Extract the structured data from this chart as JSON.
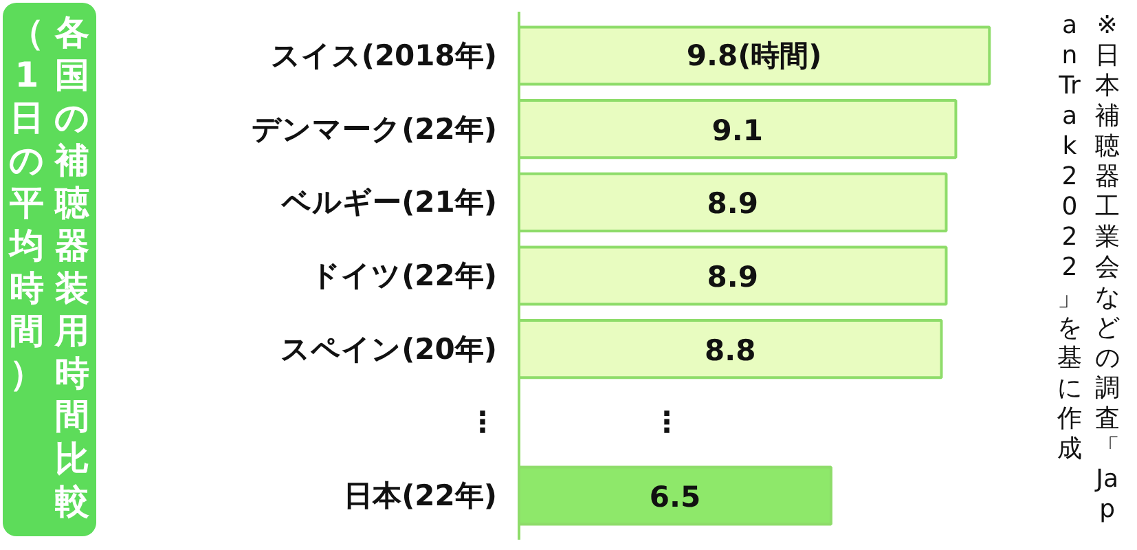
{
  "chart_data": {
    "type": "bar",
    "orientation": "horizontal",
    "title": "各国の補聴器装用時間比較（1日の平均時間）",
    "annotations": [
      "※日本補聴器工業会などの調査「Japan Trak 2022」を基に作成"
    ],
    "categories": [
      "スイス(2018年)",
      "デンマーク(22年)",
      "ベルギー(21年)",
      "ドイツ(22年)",
      "スペイン(20年)",
      "⋮",
      "日本(22年)"
    ],
    "values": [
      9.8,
      9.1,
      8.9,
      8.9,
      8.8,
      null,
      6.5
    ],
    "colors": [
      "#e8fcc0",
      "#e8fcc0",
      "#e8fcc0",
      "#e8fcc0",
      "#e8fcc0",
      null,
      "#8ee86a"
    ],
    "value_labels": [
      "9.8(時間)",
      "9.1",
      "8.9",
      "8.9",
      "8.8",
      "⋮",
      "6.5"
    ],
    "grid": false
  }
}
